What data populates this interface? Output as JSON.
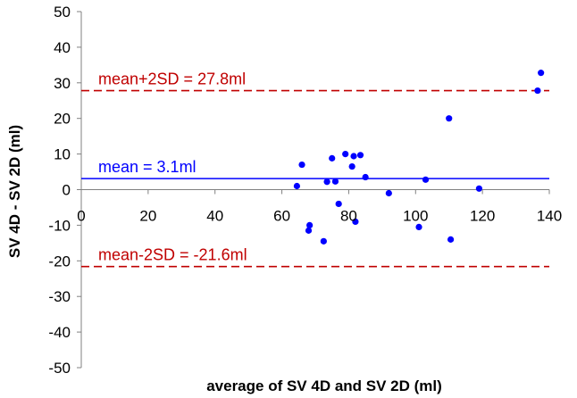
{
  "chart_data": {
    "type": "scatter",
    "title": "",
    "xlabel": "average of SV 4D and SV 2D (ml)",
    "ylabel": "SV 4D - SV 2D (ml)",
    "xlim": [
      0,
      140
    ],
    "ylim": [
      -50,
      50
    ],
    "xticks": [
      0,
      20,
      40,
      60,
      80,
      100,
      120,
      140
    ],
    "yticks": [
      50,
      40,
      30,
      20,
      10,
      0,
      -10,
      -20,
      -30,
      -40,
      -50
    ],
    "grid": false,
    "series": [
      {
        "name": "differences",
        "color": "#0000ff",
        "points": [
          {
            "x": 64.5,
            "y": 1.0
          },
          {
            "x": 66.0,
            "y": 7.0
          },
          {
            "x": 68.3,
            "y": -10.0
          },
          {
            "x": 68.0,
            "y": -11.5
          },
          {
            "x": 72.5,
            "y": -14.5
          },
          {
            "x": 73.5,
            "y": 2.2
          },
          {
            "x": 75.0,
            "y": 8.8
          },
          {
            "x": 76.0,
            "y": 2.3
          },
          {
            "x": 77.0,
            "y": -4.0
          },
          {
            "x": 79.0,
            "y": 10.0
          },
          {
            "x": 81.0,
            "y": 6.5
          },
          {
            "x": 81.5,
            "y": 9.4
          },
          {
            "x": 82.0,
            "y": -9.0
          },
          {
            "x": 83.5,
            "y": 9.7
          },
          {
            "x": 85.0,
            "y": 3.5
          },
          {
            "x": 92.0,
            "y": -1.0
          },
          {
            "x": 101.0,
            "y": -10.5
          },
          {
            "x": 103.0,
            "y": 2.8
          },
          {
            "x": 110.0,
            "y": 20.0
          },
          {
            "x": 110.5,
            "y": -14.0
          },
          {
            "x": 119.0,
            "y": 0.3
          },
          {
            "x": 136.5,
            "y": 27.8
          },
          {
            "x": 137.5,
            "y": 32.8
          }
        ]
      }
    ],
    "reference_lines": [
      {
        "name": "mean",
        "y": 3.1,
        "label": "mean = 3.1ml",
        "color": "#0000ff",
        "style": "solid"
      },
      {
        "name": "upper-limit",
        "y": 27.8,
        "label": "mean+2SD = 27.8ml",
        "color": "#c00000",
        "style": "dashed"
      },
      {
        "name": "lower-limit",
        "y": -21.6,
        "label": "mean-2SD = -21.6ml",
        "color": "#c00000",
        "style": "dashed"
      }
    ]
  }
}
